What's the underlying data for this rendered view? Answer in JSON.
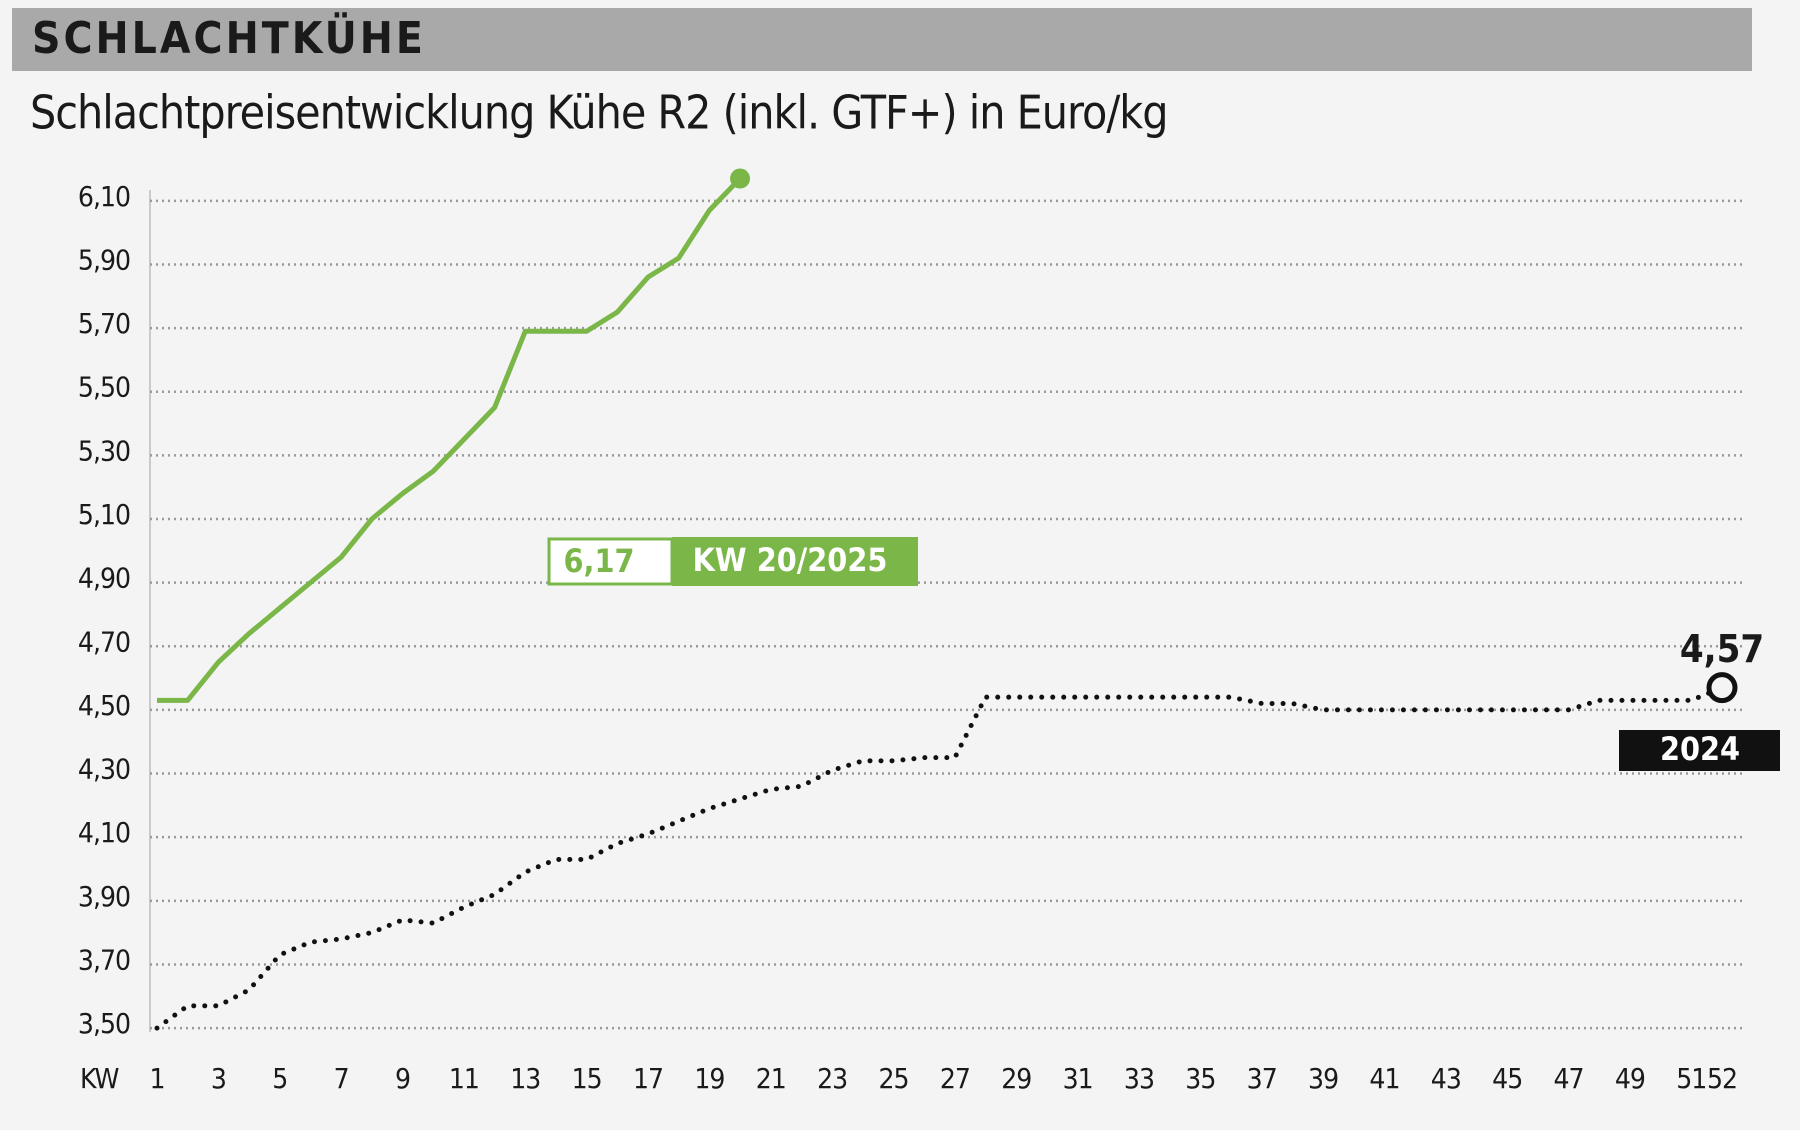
{
  "chart_data": {
    "type": "line",
    "header": "SCHLACHTKÜHE",
    "title": "Schlachtpreisentwicklung Kühe R2 (inkl. GTF+) in Euro/kg",
    "x_axis_label": "KW",
    "xlim": [
      1,
      52
    ],
    "xticks": [
      1,
      3,
      5,
      7,
      9,
      11,
      13,
      15,
      17,
      19,
      21,
      23,
      25,
      27,
      29,
      31,
      33,
      35,
      37,
      39,
      41,
      43,
      45,
      47,
      49,
      51,
      52
    ],
    "ylim": [
      3.45,
      6.2
    ],
    "yticks": [
      {
        "value": 3.5,
        "label": "3,50"
      },
      {
        "value": 3.7,
        "label": "3,70"
      },
      {
        "value": 3.9,
        "label": "3,90"
      },
      {
        "value": 4.1,
        "label": "4,10"
      },
      {
        "value": 4.3,
        "label": "4,30"
      },
      {
        "value": 4.5,
        "label": "4,50"
      },
      {
        "value": 4.7,
        "label": "4,70"
      },
      {
        "value": 4.9,
        "label": "4,90"
      },
      {
        "value": 5.1,
        "label": "5,10"
      },
      {
        "value": 5.3,
        "label": "5,30"
      },
      {
        "value": 5.5,
        "label": "5,50"
      },
      {
        "value": 5.7,
        "label": "5,70"
      },
      {
        "value": 5.9,
        "label": "5,90"
      },
      {
        "value": 6.1,
        "label": "6,10"
      }
    ],
    "grid": true,
    "series": [
      {
        "label": "KW 20/2025",
        "color": "#7ab648",
        "style": "solid",
        "x": [
          1,
          2,
          3,
          4,
          5,
          6,
          7,
          8,
          9,
          10,
          11,
          12,
          13,
          14,
          15,
          16,
          17,
          18,
          19,
          20
        ],
        "values": [
          4.53,
          4.53,
          4.65,
          4.74,
          4.82,
          4.9,
          4.98,
          5.1,
          5.18,
          5.25,
          5.35,
          5.45,
          5.69,
          5.69,
          5.69,
          5.75,
          5.86,
          5.92,
          6.07,
          6.17
        ],
        "end_label": "6,17"
      },
      {
        "name": "2024",
        "color": "#111111",
        "style": "dotted",
        "x": [
          1,
          2,
          3,
          4,
          5,
          6,
          7,
          8,
          9,
          10,
          11,
          12,
          13,
          14,
          15,
          16,
          17,
          18,
          19,
          20,
          21,
          22,
          23,
          24,
          25,
          26,
          27,
          28,
          29,
          30,
          31,
          32,
          33,
          34,
          35,
          36,
          37,
          38,
          39,
          40,
          41,
          42,
          43,
          44,
          45,
          46,
          47,
          48,
          49,
          50,
          51,
          52
        ],
        "values": [
          3.5,
          3.57,
          3.57,
          3.62,
          3.73,
          3.77,
          3.78,
          3.8,
          3.84,
          3.83,
          3.88,
          3.92,
          3.99,
          4.03,
          4.03,
          4.08,
          4.11,
          4.15,
          4.19,
          4.22,
          4.25,
          4.26,
          4.31,
          4.34,
          4.34,
          4.35,
          4.35,
          4.54,
          4.54,
          4.54,
          4.54,
          4.54,
          4.54,
          4.54,
          4.54,
          4.54,
          4.52,
          4.52,
          4.5,
          4.5,
          4.5,
          4.5,
          4.5,
          4.5,
          4.5,
          4.5,
          4.5,
          4.53,
          4.53,
          4.53,
          4.53,
          4.57
        ],
        "end_label": "4,57"
      }
    ]
  }
}
